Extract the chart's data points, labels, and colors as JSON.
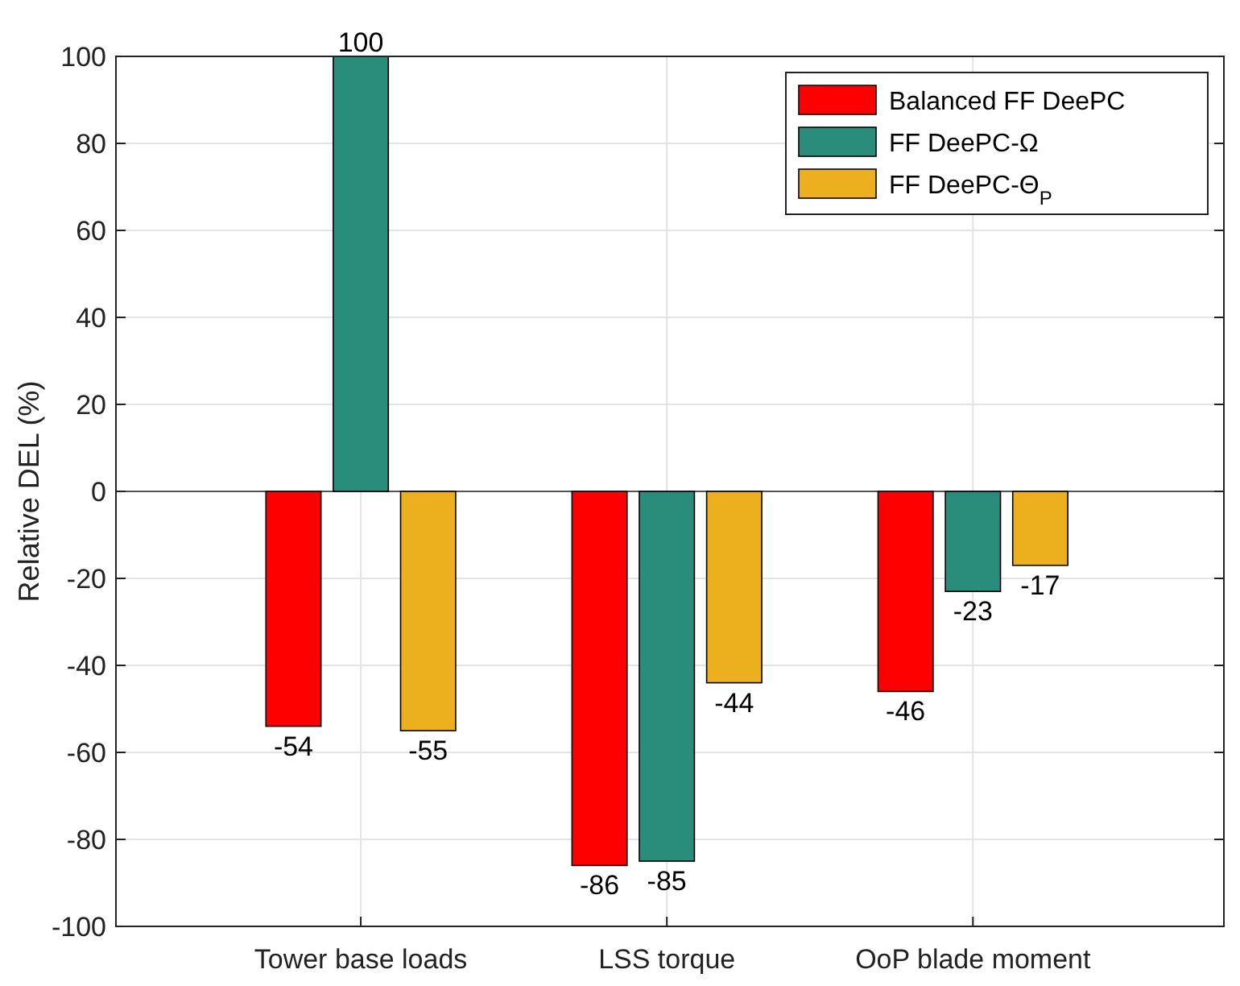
{
  "chart_data": {
    "type": "bar",
    "ylabel": "Relative DEL (%)",
    "categories": [
      "Tower base loads",
      "LSS torque",
      "OoP blade moment"
    ],
    "series": [
      {
        "name": "Balanced FF DeePC",
        "color": "#ff0000",
        "values": [
          -54,
          -86,
          -46
        ]
      },
      {
        "name": "FF DeePC-Ω",
        "color": "#2a8c7a",
        "values": [
          100,
          -85,
          -23
        ]
      },
      {
        "name": "FF DeePC-Θ$_{P}$",
        "color": "#ecb01f",
        "values": [
          -55,
          -44,
          -17
        ]
      }
    ],
    "ylim": [
      -100,
      100
    ],
    "yticks": [
      -100,
      -80,
      -60,
      -40,
      -20,
      0,
      20,
      40,
      60,
      80,
      100
    ],
    "grid": true,
    "legend": "top right",
    "data_labels": true
  }
}
